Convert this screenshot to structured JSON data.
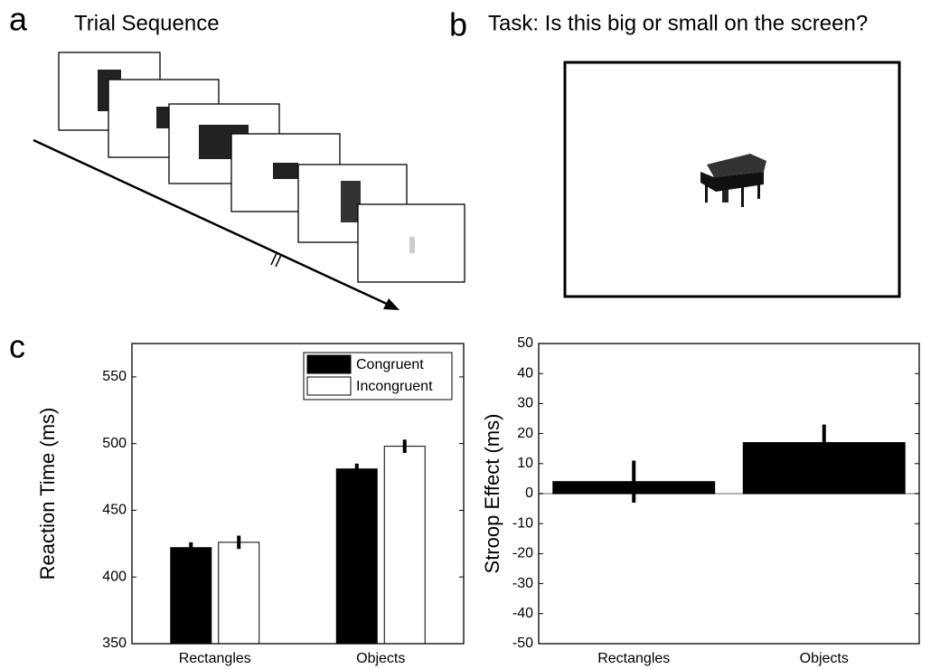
{
  "panels": {
    "a": {
      "label": "a",
      "title": "Trial Sequence"
    },
    "b": {
      "label": "b",
      "title": "Task: Is this big or small on the screen?"
    },
    "c": {
      "label": "c"
    }
  },
  "chart_data": [
    {
      "type": "bar",
      "categories": [
        "Rectangles",
        "Objects"
      ],
      "series": [
        {
          "name": "Congruent",
          "color": "#000000",
          "values": [
            422,
            481
          ],
          "errors": [
            4,
            4
          ]
        },
        {
          "name": "Incongruent",
          "color": "#ffffff",
          "values": [
            426,
            498
          ],
          "errors": [
            5,
            5
          ]
        }
      ],
      "y_label": "Reaction Time (ms)",
      "ylim": [
        350,
        575
      ],
      "yticks": [
        350,
        400,
        450,
        500,
        550
      ],
      "legend": "upper right"
    },
    {
      "type": "bar",
      "categories": [
        "Rectangles",
        "Objects"
      ],
      "series": [
        {
          "color": "#000000",
          "values": [
            4,
            17
          ],
          "errors": [
            7,
            6
          ]
        }
      ],
      "y_label": "Stroop Effect (ms)",
      "ylim": [
        -50,
        50
      ],
      "yticks": [
        -50,
        -40,
        -30,
        -20,
        -10,
        0,
        10,
        20,
        30,
        40,
        50
      ]
    }
  ]
}
